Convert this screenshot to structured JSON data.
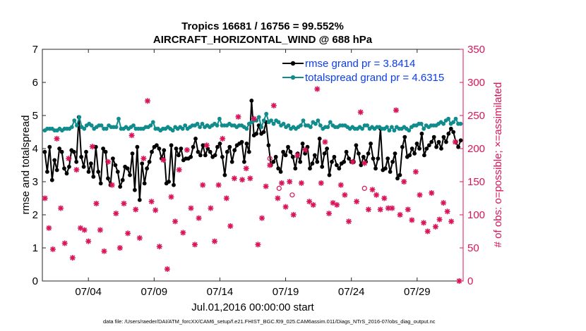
{
  "chart_data": {
    "type": "line",
    "title": "Tropics 16681 / 16756 = 99.552%",
    "subtitle": "AIRCRAFT_HORIZONTAL_WIND @ 688 hPa",
    "xlabel": "Jul.01,2016 00:00:00 start",
    "ylabel_left": "rmse and totalspread",
    "ylabel_right": "# of obs: o=possible; ×=assimilated",
    "x_range_days": [
      0.0,
      32.0
    ],
    "ylim_left": [
      0,
      7
    ],
    "ylim_right": [
      0,
      350
    ],
    "x_ticks": [
      {
        "day": 3.5,
        "label": "07/04"
      },
      {
        "day": 8.5,
        "label": "07/09"
      },
      {
        "day": 13.5,
        "label": "07/14"
      },
      {
        "day": 18.5,
        "label": "07/19"
      },
      {
        "day": 23.5,
        "label": "07/24"
      },
      {
        "day": 28.5,
        "label": "07/29"
      }
    ],
    "y_ticks_left": [
      "0",
      "1",
      "2",
      "3",
      "4",
      "5",
      "6",
      "7"
    ],
    "y_ticks_right": [
      "0",
      "50",
      "100",
      "150",
      "200",
      "250",
      "300",
      "350"
    ],
    "grid": false,
    "legend_position": "top-right",
    "series": [
      {
        "name": "rmse grand pr = 3.8414",
        "color": "#000000",
        "axis": "left",
        "values": [
          3.9,
          3.3,
          4.05,
          3.05,
          3.65,
          3.35,
          4.0,
          3.9,
          3.4,
          3.25,
          3.45,
          3.95,
          3.9,
          3.6,
          4.95,
          3.75,
          3.45,
          3.9,
          3.3,
          3.55,
          3.15,
          4.05,
          3.3,
          2.95,
          4.0,
          3.9,
          3.1,
          2.9,
          3.7,
          3.5,
          3.3,
          2.85,
          3.05,
          3.45,
          3.4,
          3.2,
          3.85,
          2.75,
          4.05,
          2.45,
          3.55,
          2.95,
          3.4,
          3.6,
          3.9,
          4.05,
          4.1,
          4.0,
          3.7,
          3.95,
          2.95,
          3.0,
          4.1,
          2.9,
          4.0,
          3.8,
          4.0,
          3.65,
          3.7,
          3.7,
          3.75,
          4.05,
          4.3,
          3.9,
          3.8,
          4.1,
          3.8,
          4.0,
          3.9,
          3.75,
          3.8,
          4.05,
          4.15,
          3.75,
          3.2,
          3.9,
          4.05,
          3.6,
          3.95,
          4.1,
          4.15,
          4.2,
          3.6,
          4.15,
          3.9,
          5.45,
          4.4,
          4.45,
          4.7,
          4.45,
          4.5,
          4.8,
          4.1,
          3.5,
          3.6,
          3.75,
          3.4,
          3.3,
          3.9,
          3.8,
          4.05,
          3.9,
          3.75,
          3.4,
          3.85,
          3.6,
          4.15,
          3.85,
          4.05,
          3.4,
          3.55,
          3.8,
          3.6,
          4.3,
          3.45,
          3.85,
          4.0,
          3.2,
          3.6,
          3.75,
          3.5,
          3.4,
          3.55,
          3.6,
          3.9,
          3.7,
          3.6,
          3.6,
          4.1,
          3.85,
          3.5,
          3.75,
          3.6,
          3.85,
          4.15,
          3.7,
          3.4,
          3.7,
          4.6,
          3.35,
          3.4,
          3.7,
          3.3,
          3.6,
          3.85,
          3.1,
          3.2,
          4.05,
          4.35,
          3.75,
          3.8,
          4.0,
          3.85,
          4.15,
          4.0,
          4.45,
          3.8,
          4.0,
          4.1,
          4.2,
          4.35,
          4.05,
          4.2,
          4.0,
          4.35,
          4.2,
          4.45,
          4.6,
          4.5,
          4.2,
          4.05,
          4.25
        ]
      },
      {
        "name": "totalspread grand pr = 4.6315",
        "color": "#108c8c",
        "axis": "left",
        "values": [
          4.55,
          4.6,
          4.6,
          4.6,
          4.55,
          4.55,
          4.6,
          4.55,
          4.6,
          4.6,
          4.6,
          4.65,
          4.85,
          4.7,
          4.95,
          4.65,
          4.6,
          4.7,
          4.75,
          4.7,
          4.6,
          4.65,
          4.7,
          4.7,
          4.6,
          4.6,
          4.7,
          4.65,
          4.65,
          4.65,
          4.9,
          4.6,
          4.6,
          4.65,
          4.6,
          4.65,
          4.7,
          4.6,
          4.6,
          4.6,
          4.6,
          4.65,
          4.65,
          4.7,
          4.8,
          4.6,
          4.6,
          4.55,
          4.6,
          4.6,
          4.65,
          4.6,
          4.55,
          4.65,
          4.6,
          4.65,
          4.6,
          4.7,
          4.6,
          4.65,
          4.7,
          4.7,
          4.75,
          4.65,
          4.75,
          4.65,
          4.7,
          4.65,
          4.7,
          4.75,
          4.7,
          4.9,
          4.7,
          4.7,
          4.7,
          4.75,
          4.7,
          4.7,
          4.65,
          4.7,
          4.7,
          4.65,
          4.6,
          4.75,
          4.8,
          4.85,
          4.85,
          4.95,
          4.65,
          4.85,
          5.05,
          4.8,
          4.85,
          4.75,
          4.85,
          4.8,
          4.7,
          4.75,
          4.65,
          4.7,
          4.6,
          4.65,
          4.6,
          4.65,
          4.7,
          4.85,
          4.7,
          4.7,
          4.65,
          4.8,
          4.75,
          4.85,
          4.7,
          4.6,
          4.65,
          4.65,
          4.8,
          4.7,
          4.65,
          4.65,
          4.7,
          4.7,
          4.7,
          4.65,
          4.6,
          4.65,
          4.6,
          4.6,
          4.65,
          4.6,
          4.7,
          4.7,
          4.6,
          4.65,
          4.6,
          4.65,
          4.65,
          4.6,
          4.6,
          4.65,
          4.55,
          4.65,
          4.55,
          4.65,
          4.6,
          4.6,
          4.65,
          4.6,
          4.55,
          4.65,
          4.7,
          4.7,
          4.75,
          4.75,
          4.6,
          4.7,
          4.65,
          4.7,
          4.7,
          4.7,
          4.75,
          4.8,
          4.75,
          4.85,
          4.9,
          4.75,
          4.8,
          4.9,
          4.75,
          4.75
        ]
      },
      {
        "name": "obs assimilated",
        "color": "#d8145a",
        "axis": "right",
        "marker": "asterisk",
        "points": [
          [
            0.2,
            125
          ],
          [
            0.5,
            80
          ],
          [
            0.8,
            48
          ],
          [
            1.1,
            215
          ],
          [
            1.4,
            110
          ],
          [
            1.7,
            57
          ],
          [
            2.0,
            185
          ],
          [
            2.3,
            35
          ],
          [
            2.6,
            168
          ],
          [
            2.9,
            80
          ],
          [
            3.2,
            77
          ],
          [
            3.5,
            60
          ],
          [
            3.8,
            203
          ],
          [
            4.1,
            117
          ],
          [
            4.4,
            77
          ],
          [
            4.7,
            45
          ],
          [
            5.0,
            180
          ],
          [
            5.3,
            145
          ],
          [
            5.6,
            102
          ],
          [
            5.9,
            50
          ],
          [
            6.2,
            117
          ],
          [
            6.5,
            72
          ],
          [
            6.8,
            220
          ],
          [
            7.1,
            108
          ],
          [
            7.4,
            65
          ],
          [
            7.7,
            185
          ],
          [
            8.0,
            272
          ],
          [
            8.3,
            120
          ],
          [
            8.6,
            107
          ],
          [
            8.9,
            52
          ],
          [
            9.2,
            183
          ],
          [
            9.5,
            18
          ],
          [
            9.8,
            127
          ],
          [
            10.1,
            90
          ],
          [
            10.4,
            168
          ],
          [
            10.7,
            73
          ],
          [
            11.0,
            198
          ],
          [
            11.3,
            110
          ],
          [
            11.6,
            55
          ],
          [
            11.9,
            95
          ],
          [
            12.2,
            145
          ],
          [
            12.5,
            205
          ],
          [
            12.8,
            110
          ],
          [
            13.1,
            60
          ],
          [
            13.4,
            145
          ],
          [
            13.7,
            215
          ],
          [
            14.0,
            125
          ],
          [
            14.3,
            83
          ],
          [
            14.6,
            155
          ],
          [
            14.9,
            248
          ],
          [
            15.2,
            153
          ],
          [
            15.5,
            170
          ],
          [
            15.8,
            155
          ],
          [
            16.1,
            245
          ],
          [
            16.4,
            55
          ],
          [
            16.7,
            95
          ],
          [
            17.0,
            143
          ],
          [
            17.3,
            175
          ],
          [
            17.6,
            265
          ],
          [
            17.9,
            125
          ],
          [
            18.2,
            148
          ],
          [
            18.5,
            112
          ],
          [
            18.8,
            150
          ],
          [
            19.1,
            100
          ],
          [
            19.4,
            190
          ],
          [
            19.7,
            148
          ],
          [
            20.0,
            198
          ],
          [
            20.3,
            120
          ],
          [
            20.6,
            115
          ],
          [
            20.9,
            290
          ],
          [
            21.2,
            148
          ],
          [
            21.5,
            210
          ],
          [
            21.8,
            102
          ],
          [
            22.1,
            118
          ],
          [
            22.4,
            115
          ],
          [
            22.7,
            145
          ],
          [
            23.0,
            130
          ],
          [
            23.3,
            90
          ],
          [
            23.6,
            180
          ],
          [
            23.9,
            120
          ],
          [
            24.2,
            255
          ],
          [
            24.5,
            178
          ],
          [
            24.8,
            108
          ],
          [
            25.1,
            138
          ],
          [
            25.4,
            130
          ],
          [
            25.7,
            108
          ],
          [
            26.0,
            125
          ],
          [
            26.3,
            110
          ],
          [
            26.6,
            110
          ],
          [
            26.9,
            258
          ],
          [
            27.2,
            100
          ],
          [
            27.5,
            150
          ],
          [
            27.8,
            108
          ],
          [
            28.1,
            92
          ],
          [
            28.4,
            165
          ],
          [
            28.7,
            130
          ],
          [
            29.0,
            88
          ],
          [
            29.3,
            75
          ],
          [
            29.6,
            133
          ],
          [
            29.9,
            82
          ],
          [
            30.2,
            93
          ],
          [
            30.5,
            118
          ],
          [
            30.8,
            105
          ],
          [
            31.1,
            90
          ],
          [
            31.4,
            210
          ],
          [
            31.7,
            0
          ]
        ]
      },
      {
        "name": "obs possible",
        "color": "#d8145a",
        "axis": "right",
        "marker": "circle",
        "points": [
          [
            17.3,
            185
          ],
          [
            18.0,
            140
          ],
          [
            19.0,
            130
          ],
          [
            24.5,
            140
          ]
        ]
      }
    ]
  },
  "footnote": "data file: /Users/raeder/DAI/ATM_forcXX/CAM6_setup/f.e21.FHIST_BGC.f09_025.CAM6assim.011/Diags_NTrS_2016-07/obs_diag_output.nc"
}
